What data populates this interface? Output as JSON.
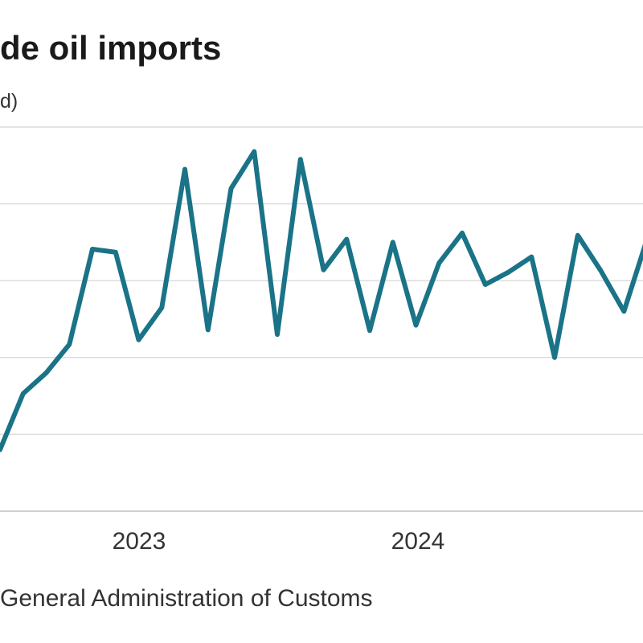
{
  "title": "de oil imports",
  "subtitle": "d)",
  "source": "General Administration of Customs",
  "colors": {
    "line": "#1a7387",
    "grid": "#dcdcdc",
    "axis": "#d0d0d0"
  },
  "chart_data": {
    "type": "line",
    "title": "de oil imports",
    "subtitle": "d)",
    "xlabel": "",
    "ylabel": "",
    "x_ticks": [
      "2023",
      "2024"
    ],
    "grid": true,
    "series": [
      {
        "name": "",
        "values": [
          0.8,
          1.53,
          1.8,
          2.17,
          3.41,
          3.37,
          2.23,
          2.65,
          4.45,
          2.36,
          4.2,
          4.68,
          2.3,
          4.58,
          3.14,
          3.54,
          2.35,
          3.5,
          2.42,
          3.23,
          3.62,
          2.95,
          3.11,
          3.31,
          2.0,
          3.59,
          3.13,
          2.6,
          3.54
        ]
      }
    ]
  }
}
